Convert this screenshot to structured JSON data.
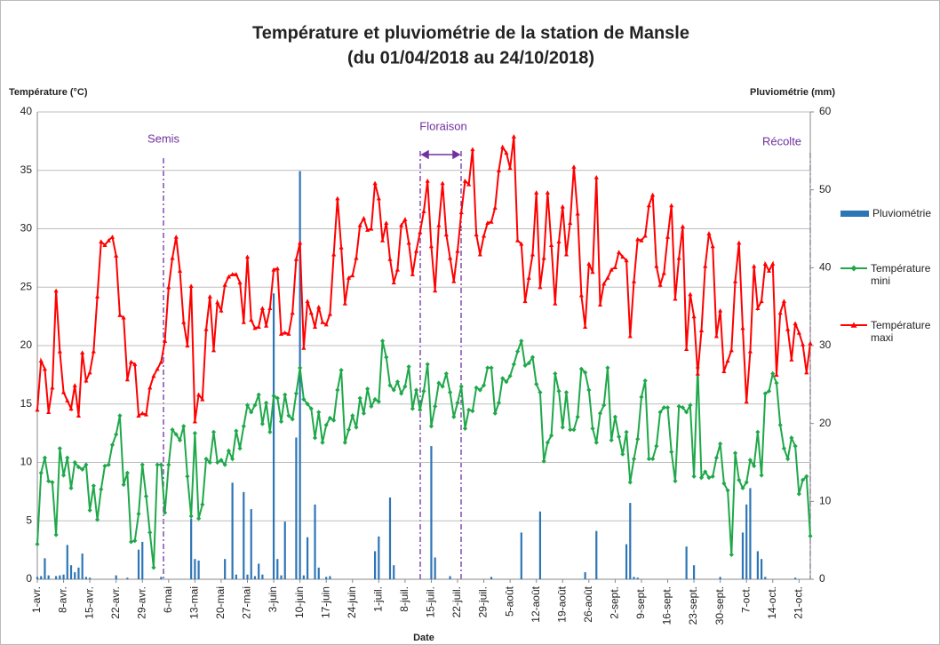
{
  "chart_data": {
    "type": "combo",
    "title": "Température et pluviométrie de la station de Mansle",
    "subtitle": "(du 01/04/2018 au 24/10/2018)",
    "y_label": "Température (°C)",
    "y2_label": "Pluviométrie (mm)",
    "x_label": "Date",
    "annotations": [
      "Semis",
      "Floraison",
      "Récolte"
    ],
    "categories": [
      "1-avr.",
      null,
      null,
      null,
      null,
      null,
      null,
      "8-avr.",
      null,
      null,
      null,
      null,
      null,
      null,
      "15-avr.",
      null,
      null,
      null,
      null,
      null,
      null,
      "22-avr.",
      null,
      null,
      null,
      null,
      null,
      null,
      "29-avr.",
      null,
      null,
      null,
      null,
      null,
      null,
      "6-mai",
      null,
      null,
      null,
      null,
      null,
      null,
      "13-mai",
      null,
      null,
      null,
      null,
      null,
      null,
      "20-mai",
      null,
      null,
      null,
      null,
      null,
      null,
      "27-mai",
      null,
      null,
      null,
      null,
      null,
      null,
      "3-juin",
      null,
      null,
      null,
      null,
      null,
      null,
      "10-juin",
      null,
      null,
      null,
      null,
      null,
      null,
      "17-juin",
      null,
      null,
      null,
      null,
      null,
      null,
      "24-juin",
      null,
      null,
      null,
      null,
      null,
      null,
      "1-juil.",
      null,
      null,
      null,
      null,
      null,
      null,
      "8-juil.",
      null,
      null,
      null,
      null,
      null,
      null,
      "15-juil.",
      null,
      null,
      null,
      null,
      null,
      null,
      "22-juil.",
      null,
      null,
      null,
      null,
      null,
      null,
      "29-juil.",
      null,
      null,
      null,
      null,
      null,
      null,
      "5-août",
      null,
      null,
      null,
      null,
      null,
      null,
      "12-août",
      null,
      null,
      null,
      null,
      null,
      null,
      "19-août",
      null,
      null,
      null,
      null,
      null,
      null,
      "26-août",
      null,
      null,
      null,
      null,
      null,
      null,
      "2-sept.",
      null,
      null,
      null,
      null,
      null,
      null,
      "9-sept.",
      null,
      null,
      null,
      null,
      null,
      null,
      "16-sept.",
      null,
      null,
      null,
      null,
      null,
      null,
      "23-sept.",
      null,
      null,
      null,
      null,
      null,
      null,
      "30-sept.",
      null,
      null,
      null,
      null,
      null,
      null,
      "7-oct.",
      null,
      null,
      null,
      null,
      null,
      null,
      "14-oct.",
      null,
      null,
      null,
      null,
      null,
      null,
      "21-oct.",
      null,
      null,
      null
    ],
    "series": [
      {
        "name": "Pluviométrie",
        "type": "bar",
        "axis": "y2",
        "color": "#2e75b6",
        "values": [
          0.3,
          0.4,
          2.7,
          0.5,
          0,
          0.4,
          0.5,
          0.6,
          4.4,
          1.8,
          0.9,
          1.5,
          3.3,
          0.3,
          0.2,
          0,
          0,
          0,
          0,
          0,
          0,
          0.5,
          0,
          0,
          0.2,
          0,
          0,
          3.8,
          4.8,
          0,
          0,
          0,
          0,
          0.3,
          0,
          0,
          0,
          0,
          0,
          0,
          0,
          7.8,
          2.6,
          2.4,
          0,
          0,
          0,
          0,
          0,
          0,
          2.6,
          0,
          12.4,
          0.6,
          0,
          11.2,
          0.6,
          9,
          0.4,
          2,
          0.6,
          0,
          0,
          36.7,
          2.6,
          0.5,
          7.4,
          0,
          0,
          18.2,
          52.4,
          0.5,
          5.4,
          0,
          9.6,
          1.5,
          0,
          0.3,
          0.4,
          0,
          0,
          0,
          0,
          0,
          0,
          0,
          0,
          0,
          0,
          0,
          3.6,
          5.5,
          0,
          0,
          10.5,
          1.8,
          0,
          0,
          0,
          0,
          0,
          0,
          0,
          0,
          0,
          17.1,
          2.8,
          0,
          0,
          0,
          0.4,
          0,
          0,
          0,
          0,
          0,
          0,
          0,
          0,
          0,
          0,
          0.3,
          0,
          0,
          0,
          0,
          0,
          0,
          0,
          6,
          0,
          0,
          0,
          0,
          8.7,
          0,
          0,
          0,
          0,
          0,
          0,
          0,
          0,
          0,
          0,
          0,
          0.9,
          0,
          0,
          6.2,
          0,
          0,
          0,
          0,
          0,
          0,
          0,
          4.5,
          9.8,
          0.3,
          0.2,
          0,
          0,
          0,
          0,
          0,
          0,
          0,
          0,
          0,
          0,
          0,
          0,
          4.2,
          0,
          1.8,
          0,
          0,
          0,
          0,
          0,
          0,
          0.3,
          0,
          0,
          0,
          0,
          0,
          6,
          9.6,
          11.7,
          0,
          3.6,
          2.6,
          0.3,
          0,
          0,
          0,
          0,
          0,
          0,
          0,
          0.2,
          0,
          0,
          0,
          0
        ]
      },
      {
        "name": "Température mini",
        "type": "line",
        "marker": "diamond",
        "color": "#1fa84a",
        "values": [
          3,
          9.1,
          10.4,
          8.4,
          8.3,
          3.8,
          11.2,
          8.9,
          10.4,
          7.8,
          10,
          9.6,
          9.4,
          9.8,
          5.9,
          8,
          5.1,
          7.7,
          9.7,
          9.8,
          11.5,
          12.4,
          14,
          8.1,
          9.1,
          3.2,
          3.3,
          5.6,
          9.8,
          7.1,
          4,
          1,
          9.8,
          9.8,
          5.7,
          9.8,
          12.8,
          12.4,
          11.9,
          13.1,
          8.8,
          5.4,
          12.5,
          5.2,
          6.4,
          10.3,
          10,
          12.6,
          10,
          10.2,
          9.8,
          11,
          10.3,
          12.7,
          11.2,
          13.1,
          14.9,
          14.3,
          14.9,
          15.8,
          13.3,
          15.1,
          12.6,
          15.7,
          15.5,
          13.5,
          15.8,
          14,
          13.7,
          15.9,
          18.1,
          15.4,
          15,
          14.6,
          12.1,
          14.3,
          11.7,
          13.2,
          13.8,
          13.6,
          16.2,
          17.9,
          11.7,
          12.8,
          14,
          13,
          15.5,
          14.2,
          16.3,
          14.8,
          15.4,
          15.2,
          20.4,
          19,
          16.6,
          16.2,
          16.9,
          15.9,
          16.5,
          18.2,
          14.6,
          16.2,
          14.5,
          16.1,
          18.4,
          13.1,
          14.8,
          16.8,
          16.5,
          17.6,
          16,
          13.9,
          15.1,
          16.5,
          12.9,
          14.5,
          14.4,
          16.4,
          16.2,
          16.6,
          18.1,
          18.1,
          14.2,
          15.1,
          17.2,
          16.9,
          17.4,
          18.4,
          19.5,
          20.4,
          18.3,
          18.5,
          19,
          16.7,
          16,
          10.1,
          11.7,
          12.3,
          17.6,
          16.1,
          13,
          16,
          12.8,
          12.8,
          13.9,
          18,
          17.7,
          16.2,
          12.9,
          11.7,
          14.2,
          14.9,
          18.1,
          11.9,
          13.9,
          12.2,
          10.7,
          12.6,
          8.3,
          10.3,
          12,
          15.6,
          17,
          10.3,
          10.3,
          11.4,
          14.3,
          14.7,
          14.7,
          10.9,
          8.4,
          14.8,
          14.7,
          14.3,
          14.9,
          8.8,
          18.1,
          8.7,
          9.2,
          8.7,
          8.8,
          10.4,
          11.6,
          8.2,
          7.6,
          2.1,
          10.8,
          8.5,
          7.8,
          8.3,
          10.2,
          9.7,
          12.6,
          8.9,
          15.9,
          16.1,
          17.6,
          16.8,
          13.2,
          11.2,
          10.3,
          12.1,
          11.4,
          7.3,
          8.5,
          8.8,
          3.7
        ]
      },
      {
        "name": "Température maxi",
        "type": "line",
        "marker": "triangle",
        "color": "#ff0000",
        "values": [
          14.5,
          18.7,
          18,
          14.3,
          16.4,
          24.7,
          19.5,
          16,
          15.3,
          14.6,
          16.6,
          14,
          19.4,
          17,
          17.7,
          19.5,
          24.2,
          28.9,
          28.6,
          29,
          29.3,
          27.7,
          22.6,
          22.4,
          17.1,
          18.6,
          18.4,
          14,
          14.2,
          14.1,
          16.4,
          17.4,
          18,
          18.6,
          20.4,
          25,
          27.5,
          29.3,
          26.4,
          22,
          20,
          25.1,
          13.5,
          15.8,
          15.4,
          21.4,
          24.2,
          19.6,
          23.7,
          23,
          25.2,
          25.9,
          26.1,
          26.1,
          25.4,
          22,
          27.6,
          22.2,
          21.5,
          21.6,
          23.2,
          21.7,
          23.2,
          26.5,
          26.6,
          21,
          21.1,
          21,
          22.8,
          27.4,
          28.8,
          19.8,
          23.8,
          22.8,
          21.6,
          23.3,
          22,
          21.8,
          22.7,
          27.8,
          32.6,
          28.4,
          23.6,
          25.8,
          26,
          27.5,
          30.3,
          30.9,
          29.9,
          30,
          33.9,
          32.6,
          29,
          30.5,
          27.4,
          25.4,
          26.5,
          30.3,
          30.8,
          28.8,
          26.1,
          28.1,
          29.7,
          31.5,
          34.1,
          28.5,
          24.7,
          30.3,
          33.9,
          29.5,
          27.5,
          25.5,
          28.1,
          31.4,
          34.1,
          33.8,
          36.8,
          29.5,
          27.8,
          29.4,
          30.5,
          30.6,
          31.8,
          35,
          37,
          36.5,
          35.2,
          37.9,
          29,
          28.7,
          23.8,
          25.8,
          27.8,
          33.1,
          25,
          27.5,
          33.1,
          28.6,
          23.6,
          28.9,
          31.9,
          27.8,
          30.5,
          35.3,
          31.3,
          24.3,
          21.6,
          27,
          26.3,
          34.4,
          23.5,
          25.3,
          25.8,
          26.5,
          26.7,
          28,
          27.6,
          27.3,
          20.8,
          25.5,
          29.1,
          29,
          29.4,
          32,
          32.9,
          26.8,
          25.2,
          26.2,
          29.3,
          32,
          24,
          27.5,
          30.2,
          19.7,
          24.4,
          22.5,
          17.6,
          21.3,
          26.8,
          29.6,
          28.5,
          20.8,
          23,
          17.8,
          18.7,
          19.6,
          25.5,
          28.8,
          21.5,
          15.2,
          19.5,
          26.8,
          23.2,
          23.8,
          27,
          26.4,
          27,
          17.5,
          22.8,
          23.8,
          21.4,
          18.8,
          21.9,
          21.1,
          20.1,
          17.7,
          20.2
        ]
      }
    ],
    "ylim": [
      0,
      40
    ],
    "yticks": [
      0,
      5,
      10,
      15,
      20,
      25,
      30,
      35,
      40
    ],
    "y2lim": [
      0,
      60
    ],
    "y2ticks": [
      0,
      10,
      20,
      30,
      40,
      50,
      60
    ],
    "grid": true,
    "legend": "right"
  }
}
